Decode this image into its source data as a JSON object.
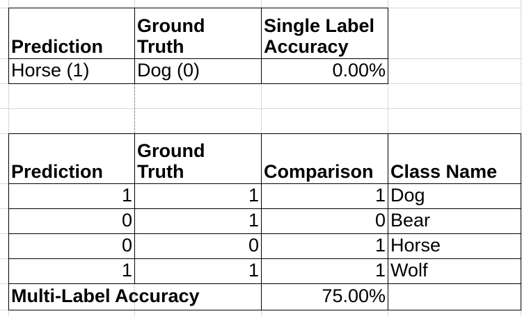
{
  "table1": {
    "headers": [
      "Prediction",
      "Ground\nTruth",
      "Single Label\nAccuracy"
    ],
    "row": [
      "Horse (1)",
      "Dog (0)",
      "0.00%"
    ]
  },
  "table2": {
    "headers": [
      "Prediction",
      "Ground\nTruth",
      "Comparison",
      "Class Name"
    ],
    "rows": [
      [
        "1",
        "1",
        "1",
        "Dog"
      ],
      [
        "0",
        "1",
        "0",
        "Bear"
      ],
      [
        "0",
        "0",
        "1",
        "Horse"
      ],
      [
        "1",
        "1",
        "1",
        "Wolf"
      ]
    ],
    "footer_label": "Multi-Label Accuracy",
    "footer_value": "75.00%"
  }
}
